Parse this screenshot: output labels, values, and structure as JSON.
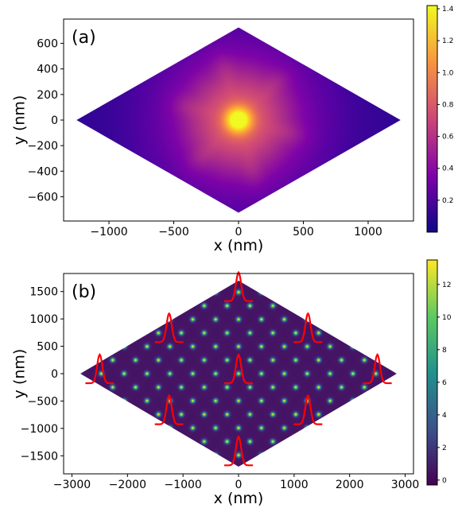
{
  "chart_data": [
    {
      "type": "heatmap",
      "panel_label": "(a)",
      "xlabel": "x (nm)",
      "ylabel": "y (nm)",
      "xlim": [
        -1350,
        1350
      ],
      "ylim": [
        -790,
        790
      ],
      "xticks": [
        -1000,
        -500,
        0,
        500,
        1000
      ],
      "xtick_labels": [
        "−1000",
        "−500",
        "0",
        "500",
        "1000"
      ],
      "yticks": [
        -600,
        -400,
        -200,
        0,
        200,
        400,
        600
      ],
      "ytick_labels": [
        "−600",
        "−400",
        "−200",
        "0",
        "200",
        "400",
        "600"
      ],
      "colormap": "plasma",
      "color_range": [
        0,
        1.42
      ],
      "colorbar_ticks": [
        0.2,
        0.4,
        0.6,
        0.8,
        1.0,
        1.2,
        1.4
      ],
      "colorbar_tick_labels": [
        "0.2",
        "0.4",
        "0.6",
        "0.8",
        "1.0",
        "1.2",
        "1.4"
      ],
      "region_vertices": [
        [
          -1250,
          0
        ],
        [
          0,
          725
        ],
        [
          1250,
          0
        ],
        [
          0,
          -725
        ]
      ],
      "peak": {
        "x": 0,
        "y": 0,
        "value": 1.42
      }
    },
    {
      "type": "heatmap",
      "panel_label": "(b)",
      "xlabel": "x (nm)",
      "ylabel": "y (nm)",
      "xlim": [
        -3150,
        3150
      ],
      "ylim": [
        -1830,
        1830
      ],
      "xticks": [
        -3000,
        -2000,
        -1000,
        0,
        1000,
        2000,
        3000
      ],
      "xtick_labels": [
        "−3000",
        "−2000",
        "−1000",
        "0",
        "1000",
        "2000",
        "3000"
      ],
      "yticks": [
        -1500,
        -1000,
        -500,
        0,
        500,
        1000,
        1500
      ],
      "ytick_labels": [
        "−1500",
        "−1000",
        "−500",
        "0",
        "500",
        "1000",
        "1500"
      ],
      "colormap": "viridis",
      "color_range": [
        -0.3,
        13.5
      ],
      "colorbar_ticks": [
        0,
        2,
        4,
        6,
        8,
        10,
        12
      ],
      "colorbar_tick_labels": [
        "0",
        "2",
        "4",
        "6",
        "8",
        "10",
        "12"
      ],
      "region_vertices": [
        [
          -2850,
          0
        ],
        [
          0,
          1700
        ],
        [
          2850,
          0
        ],
        [
          0,
          -1700
        ]
      ],
      "lattice": {
        "a1": [
          412,
          0
        ],
        "a2": [
          206,
          248
        ],
        "max_value": 13.3
      },
      "profile_markers": [
        [
          0,
          1500
        ],
        [
          -1250,
          750
        ],
        [
          1250,
          750
        ],
        [
          -2500,
          0
        ],
        [
          0,
          0
        ],
        [
          2500,
          0
        ],
        [
          -1250,
          -750
        ],
        [
          1250,
          -750
        ],
        [
          0,
          -1500
        ]
      ],
      "profile_color": "#ff0000"
    }
  ]
}
